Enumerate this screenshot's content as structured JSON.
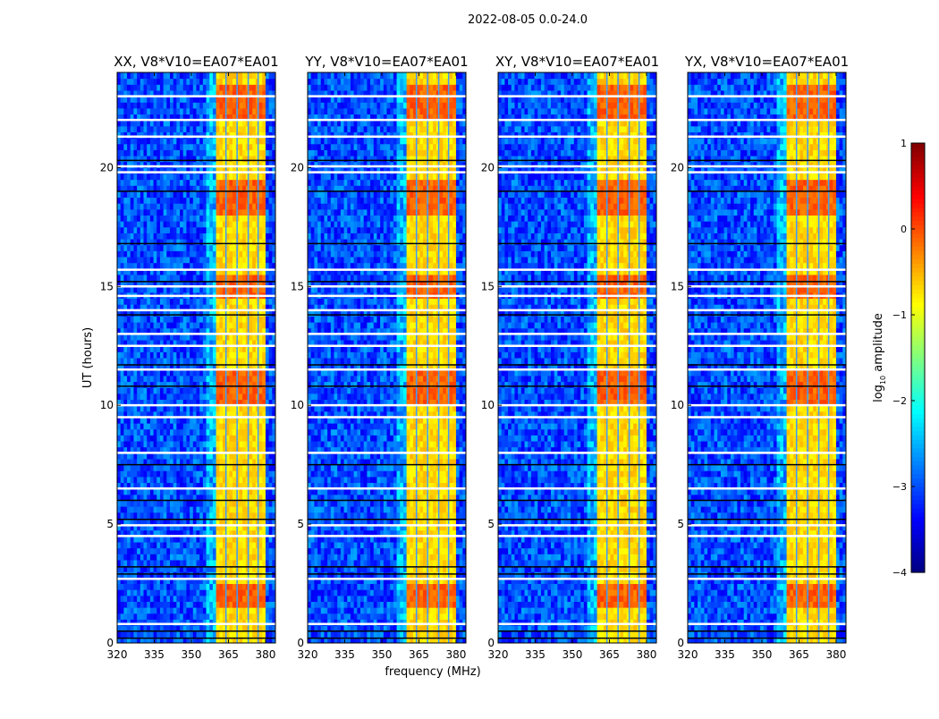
{
  "chart_data": {
    "type": "heatmap",
    "title": "2022-08-05 0.0-24.0",
    "xlabel": "frequency (MHz)",
    "ylabel": "UT (hours)",
    "xlim": [
      320,
      384
    ],
    "ylim": [
      0,
      24
    ],
    "xticks": [
      "320",
      "335",
      "350",
      "365",
      "380"
    ],
    "xtick_values": [
      320,
      335,
      350,
      365,
      380
    ],
    "yticks": [
      "0",
      "5",
      "10",
      "15",
      "20"
    ],
    "ytick_values": [
      0,
      5,
      10,
      15,
      20
    ],
    "colorbar": {
      "label_main": "log",
      "label_sub": "10",
      "label_rest": " amplitude",
      "colormap": "jet",
      "range": [
        -4,
        1
      ],
      "ticks": [
        "1",
        "0",
        "−1",
        "−2",
        "−3",
        "−4"
      ],
      "tick_values": [
        1,
        0,
        -1,
        -2,
        -3,
        -4
      ]
    },
    "panels": [
      {
        "title": "XX, V8*V10=EA07*EA01"
      },
      {
        "title": "YY, V8*V10=EA07*EA01"
      },
      {
        "title": "XY, V8*V10=EA07*EA01"
      },
      {
        "title": "YX, V8*V10=EA07*EA01"
      }
    ],
    "features": {
      "background_log_amplitude": -3.0,
      "rfi_band_mhz": [
        360,
        380
      ],
      "rfi_band_log_amplitude": -0.7,
      "band_gap_lines_mhz": [
        364,
        368.5,
        373,
        377
      ],
      "bright_hours": [
        [
          22.0,
          23.6
        ],
        [
          18.0,
          19.6
        ],
        [
          14.4,
          15.5
        ],
        [
          10.1,
          11.6
        ],
        [
          1.5,
          2.5
        ]
      ],
      "bright_log_amplitude": -0.1,
      "flagged_hours_white": [
        0.8,
        2.7,
        4.5,
        4.95,
        6.5,
        8.0,
        9.5,
        10.0,
        11.5,
        12.5,
        13.0,
        14.0,
        14.6,
        15.0,
        15.7,
        19.8,
        20.05,
        21.3,
        22.0,
        23.0
      ],
      "dropout_hours_black": [
        0.2,
        0.5,
        2.9,
        3.2,
        5.2,
        6.0,
        7.5,
        10.8,
        11.7,
        13.8,
        15.2,
        16.8,
        19.0,
        20.3
      ]
    }
  }
}
